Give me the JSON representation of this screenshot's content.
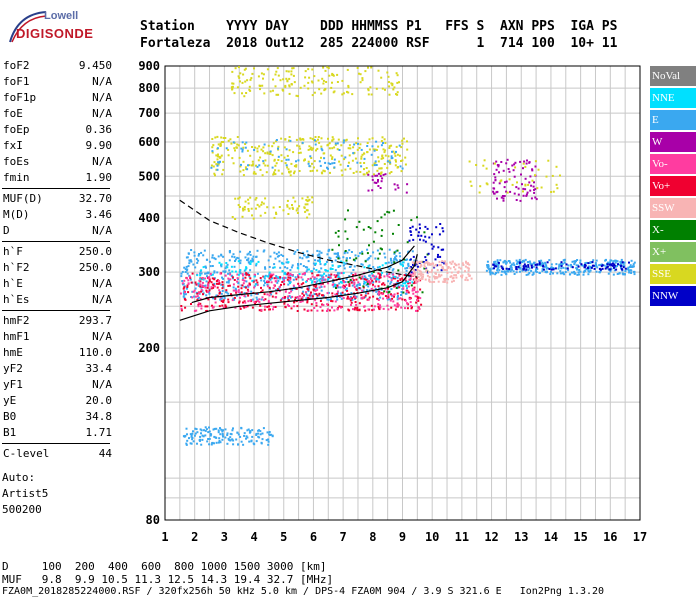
{
  "logo": {
    "line1": "Lowell",
    "line2": "DIGISONDE"
  },
  "header": {
    "line1": "Station    YYYY DAY    DDD HHMMSS P1   FFS S  AXN PPS  IGA PS",
    "line2": "Fortaleza  2018 Out12  285 224000 RSF      1  714 100  10+ 11"
  },
  "params": [
    {
      "group": 1,
      "key": "foF2",
      "value": "9.450"
    },
    {
      "group": 1,
      "key": "foF1",
      "value": "N/A"
    },
    {
      "group": 1,
      "key": "foF1p",
      "value": "N/A"
    },
    {
      "group": 1,
      "key": "foE",
      "value": "N/A"
    },
    {
      "group": 1,
      "key": "foEp",
      "value": "0.36"
    },
    {
      "group": 1,
      "key": "fxI",
      "value": "9.90"
    },
    {
      "group": 1,
      "key": "foEs",
      "value": "N/A"
    },
    {
      "group": 1,
      "key": "fmin",
      "value": "1.90"
    },
    {
      "group": 2,
      "key": "MUF(D)",
      "value": "32.70"
    },
    {
      "group": 2,
      "key": "M(D)",
      "value": "3.46"
    },
    {
      "group": 2,
      "key": "D",
      "value": "N/A"
    },
    {
      "group": 3,
      "key": "h`F",
      "value": "250.0"
    },
    {
      "group": 3,
      "key": "h`F2",
      "value": "250.0"
    },
    {
      "group": 3,
      "key": "h`E",
      "value": "N/A"
    },
    {
      "group": 3,
      "key": "h`Es",
      "value": "N/A"
    },
    {
      "group": 4,
      "key": "hmF2",
      "value": "293.7"
    },
    {
      "group": 4,
      "key": "hmF1",
      "value": "N/A"
    },
    {
      "group": 4,
      "key": "hmE",
      "value": "110.0"
    },
    {
      "group": 4,
      "key": "yF2",
      "value": "33.4"
    },
    {
      "group": 4,
      "key": "yF1",
      "value": "N/A"
    },
    {
      "group": 4,
      "key": "yE",
      "value": "20.0"
    },
    {
      "group": 4,
      "key": "B0",
      "value": "34.8"
    },
    {
      "group": 4,
      "key": "B1",
      "value": "1.71"
    },
    {
      "group": 5,
      "key": "C-level",
      "value": "44"
    }
  ],
  "auto": {
    "line1": "Auto:",
    "line2": "Artist5",
    "line3": "500200"
  },
  "legend": [
    {
      "label": "NoVal",
      "color": "#808080"
    },
    {
      "label": "NNE",
      "color": "#00e0ff"
    },
    {
      "label": "E",
      "color": "#3aa8f0"
    },
    {
      "label": "W",
      "color": "#a800a8"
    },
    {
      "label": "Vo-",
      "color": "#ff3ca0"
    },
    {
      "label": "Vo+",
      "color": "#f00030"
    },
    {
      "label": "SSW",
      "color": "#f8b4b4"
    },
    {
      "label": "X-",
      "color": "#008000"
    },
    {
      "label": "X+",
      "color": "#80c060"
    },
    {
      "label": "SSE",
      "color": "#d8d820"
    },
    {
      "label": "NNW",
      "color": "#0000c8"
    }
  ],
  "footer": {
    "line1": "D     100  200  400  600  800 1000 1500 3000 [km]",
    "line2": "MUF   9.8  9.9 10.5 11.3 12.5 14.3 19.4 32.7 [MHz]",
    "line3": "FZA0M_2018285224000.RSF / 320fx256h 50 kHz 5.0 km / DPS-4 FZA0M 904 / 3.9 S 321.6 E   Ion2Png 1.3.20"
  },
  "chart_data": {
    "type": "scatter",
    "title": "",
    "xlabel": "",
    "ylabel": "",
    "xlim": [
      1,
      17
    ],
    "ylim": [
      80,
      900
    ],
    "y_scale": "log",
    "x_ticks": [
      1,
      2,
      3,
      4,
      5,
      6,
      7,
      8,
      9,
      10,
      11,
      12,
      13,
      14,
      15,
      16,
      17
    ],
    "y_ticks": [
      80,
      200,
      300,
      400,
      500,
      600,
      700,
      800,
      900
    ],
    "grid": true,
    "legend_position": "right",
    "clusters": [
      {
        "series": "E",
        "x": [
          1.5,
          9.4
        ],
        "y": [
          260,
          340
        ],
        "n": 650
      },
      {
        "series": "Vo+",
        "x": [
          1.5,
          9.6
        ],
        "y": [
          245,
          300
        ],
        "n": 380
      },
      {
        "series": "Vo-",
        "x": [
          1.5,
          9.6
        ],
        "y": [
          245,
          300
        ],
        "n": 300
      },
      {
        "series": "NNE",
        "x": [
          2.0,
          9.3
        ],
        "y": [
          280,
          320
        ],
        "n": 90
      },
      {
        "series": "X-",
        "x": [
          6.5,
          9.9
        ],
        "y": [
          270,
          420
        ],
        "n": 70
      },
      {
        "series": "NNW",
        "x": [
          9.2,
          10.4
        ],
        "y": [
          300,
          390
        ],
        "n": 60
      },
      {
        "series": "SSW",
        "x": [
          9.2,
          11.3
        ],
        "y": [
          285,
          320
        ],
        "n": 160
      },
      {
        "series": "E",
        "x": [
          11.8,
          16.8
        ],
        "y": [
          297,
          322
        ],
        "n": 330
      },
      {
        "series": "NNW",
        "x": [
          12.0,
          16.6
        ],
        "y": [
          305,
          318
        ],
        "n": 90
      },
      {
        "series": "E",
        "x": [
          1.6,
          4.6
        ],
        "y": [
          120,
          132
        ],
        "n": 150
      },
      {
        "series": "SSE",
        "x": [
          2.5,
          9.2
        ],
        "y": [
          505,
          620
        ],
        "n": 320
      },
      {
        "series": "E",
        "x": [
          2.5,
          9.0
        ],
        "y": [
          520,
          610
        ],
        "n": 90
      },
      {
        "series": "SSE",
        "x": [
          3.2,
          8.9
        ],
        "y": [
          770,
          900
        ],
        "n": 160
      },
      {
        "series": "SSE",
        "x": [
          3.0,
          6.0
        ],
        "y": [
          400,
          450
        ],
        "n": 70
      },
      {
        "series": "W",
        "x": [
          12.0,
          13.5
        ],
        "y": [
          440,
          550
        ],
        "n": 80
      },
      {
        "series": "SSE",
        "x": [
          11.2,
          14.3
        ],
        "y": [
          460,
          550
        ],
        "n": 40
      },
      {
        "series": "W",
        "x": [
          7.8,
          9.2
        ],
        "y": [
          460,
          510
        ],
        "n": 25
      }
    ],
    "curves": [
      {
        "name": "dashed",
        "style": "dashed",
        "x": [
          1.5,
          2.5,
          3.5,
          4.5,
          5.5,
          6.5,
          7.5,
          8.5,
          9.5
        ],
        "y": [
          440,
          395,
          370,
          350,
          333,
          320,
          310,
          300,
          292
        ]
      },
      {
        "name": "profile",
        "style": "solid",
        "x": [
          1.5,
          2.5,
          3.5,
          4.5,
          5.5,
          6.5,
          7.5,
          8.5,
          9.0,
          9.4,
          9.5
        ],
        "y": [
          232,
          244,
          250,
          254,
          258,
          262,
          268,
          276,
          285,
          310,
          330
        ]
      },
      {
        "name": "trace",
        "style": "solid",
        "x": [
          1.9,
          2.5,
          3.5,
          4.5,
          5.5,
          6.5,
          7.5,
          8.5,
          9.0,
          9.4
        ],
        "y": [
          255,
          262,
          266,
          270,
          276,
          285,
          295,
          308,
          320,
          345
        ]
      }
    ]
  }
}
